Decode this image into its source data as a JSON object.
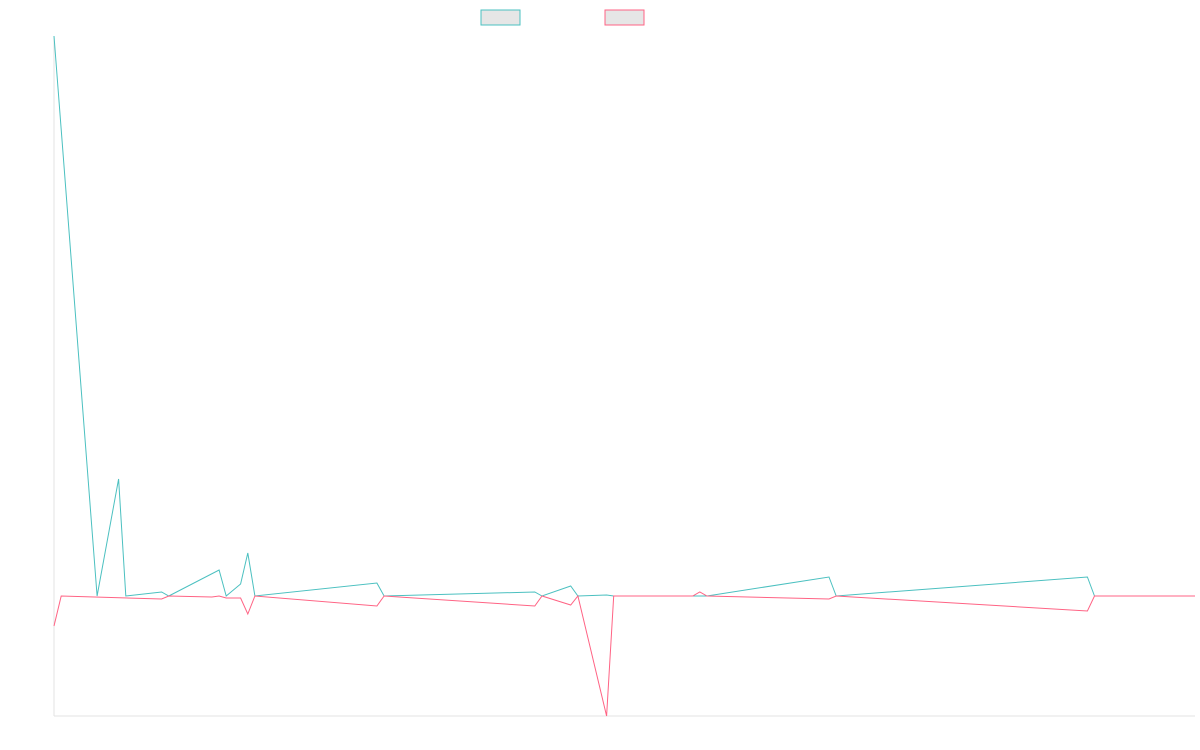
{
  "chart_data": {
    "type": "line",
    "title": "",
    "xlabel": "",
    "ylabel": "",
    "legend_position": "top-center",
    "grid": false,
    "x_count": 160,
    "ylim": [
      -120,
      560
    ],
    "series": [
      {
        "color": "#4bc0c0",
        "fill": "#e6e6e6",
        "points": [
          [
            0,
            560
          ],
          [
            6,
            0
          ],
          [
            9,
            117
          ],
          [
            10,
            0
          ],
          [
            15,
            4
          ],
          [
            16,
            0
          ],
          [
            23,
            26
          ],
          [
            24,
            0
          ],
          [
            26,
            12
          ],
          [
            27,
            43
          ],
          [
            28,
            0
          ],
          [
            45,
            13
          ],
          [
            46,
            0
          ],
          [
            67,
            4
          ],
          [
            68,
            0
          ],
          [
            72,
            10
          ],
          [
            73,
            0
          ],
          [
            77,
            1
          ],
          [
            78,
            0
          ],
          [
            89,
            0
          ],
          [
            90,
            0
          ],
          [
            91,
            0
          ],
          [
            108,
            19
          ],
          [
            109,
            0
          ],
          [
            144,
            19
          ],
          [
            145,
            0
          ],
          [
            159,
            0
          ]
        ]
      },
      {
        "color": "#ff6384",
        "fill": "#e6e6e6",
        "points": [
          [
            0,
            -30
          ],
          [
            1,
            0
          ],
          [
            15,
            -3
          ],
          [
            16,
            0
          ],
          [
            22,
            -1
          ],
          [
            23,
            0
          ],
          [
            24,
            -2
          ],
          [
            26,
            -2
          ],
          [
            27,
            -18
          ],
          [
            28,
            0
          ],
          [
            45,
            -10
          ],
          [
            46,
            0
          ],
          [
            67,
            -10
          ],
          [
            68,
            0
          ],
          [
            72,
            -9
          ],
          [
            73,
            0
          ],
          [
            77,
            -120
          ],
          [
            78,
            0
          ],
          [
            89,
            0
          ],
          [
            90,
            4
          ],
          [
            91,
            0
          ],
          [
            108,
            -3
          ],
          [
            109,
            0
          ],
          [
            144,
            -15
          ],
          [
            145,
            0
          ],
          [
            159,
            0
          ]
        ]
      }
    ]
  }
}
